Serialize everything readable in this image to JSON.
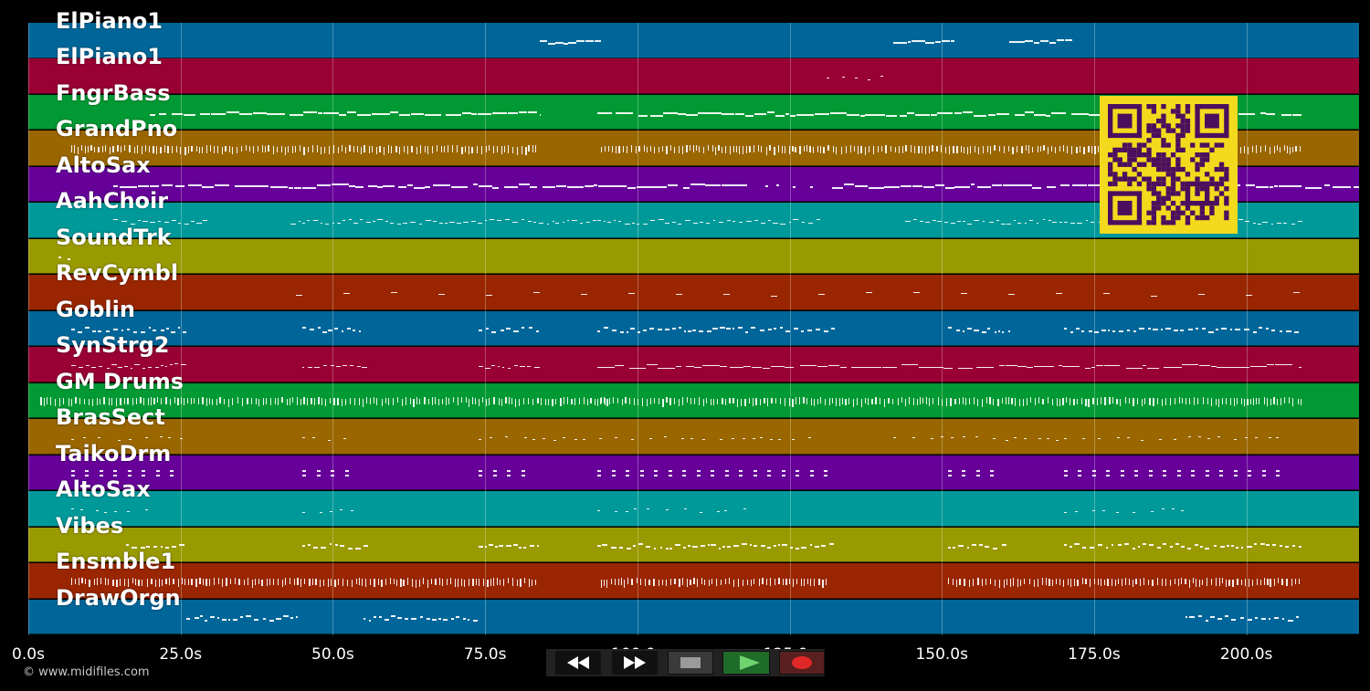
{
  "tracks": [
    {
      "name": "ElPiano1",
      "color": "#006699"
    },
    {
      "name": "ElPiano1",
      "color": "#990033"
    },
    {
      "name": "FngrBass",
      "color": "#009933"
    },
    {
      "name": "GrandPno",
      "color": "#996600"
    },
    {
      "name": "AltoSax",
      "color": "#660099"
    },
    {
      "name": "AahChoir",
      "color": "#009999"
    },
    {
      "name": "SoundTrk",
      "color": "#999900"
    },
    {
      "name": "RevCymbl",
      "color": "#992600"
    },
    {
      "name": "Goblin",
      "color": "#006699"
    },
    {
      "name": "SynStrg2",
      "color": "#990033"
    },
    {
      "name": "GM Drums",
      "color": "#009933"
    },
    {
      "name": "BrasSect",
      "color": "#996600"
    },
    {
      "name": "TaikoDrm",
      "color": "#660099"
    },
    {
      "name": "AltoSax",
      "color": "#009999"
    },
    {
      "name": "Vibes",
      "color": "#999900"
    },
    {
      "name": "Ensmble1",
      "color": "#992600"
    },
    {
      "name": "DrawOrgn",
      "color": "#006699"
    }
  ],
  "time_axis": {
    "max_seconds": 218.5,
    "ticks": [
      {
        "value": 0,
        "label": "0.0s"
      },
      {
        "value": 25,
        "label": "25.0s"
      },
      {
        "value": 50,
        "label": "50.0s"
      },
      {
        "value": 75,
        "label": "75.0s"
      },
      {
        "value": 100,
        "label": "100.0s"
      },
      {
        "value": 125,
        "label": "125.0s"
      },
      {
        "value": 150,
        "label": "150.0s"
      },
      {
        "value": 175,
        "label": "175.0s"
      },
      {
        "value": 200,
        "label": "200.0s"
      }
    ]
  },
  "note_segments": [
    {
      "track": 0,
      "start": 84,
      "end": 94,
      "style": "cluster"
    },
    {
      "track": 0,
      "start": 142,
      "end": 151.5,
      "style": "cluster"
    },
    {
      "track": 0,
      "start": 161,
      "end": 170.5,
      "style": "cluster"
    },
    {
      "track": 1,
      "start": 131,
      "end": 141.5,
      "style": "sparse"
    },
    {
      "track": 2,
      "start": 20,
      "end": 84,
      "style": "line"
    },
    {
      "track": 2,
      "start": 93.5,
      "end": 209,
      "style": "line"
    },
    {
      "track": 3,
      "start": 7,
      "end": 83.5,
      "style": "ticks"
    },
    {
      "track": 3,
      "start": 94,
      "end": 209,
      "style": "ticks"
    },
    {
      "track": 4,
      "start": 14,
      "end": 118,
      "style": "line"
    },
    {
      "track": 4,
      "start": 121,
      "end": 129,
      "style": "sparse"
    },
    {
      "track": 4,
      "start": 132,
      "end": 218.5,
      "style": "line"
    },
    {
      "track": 5,
      "start": 14,
      "end": 29,
      "style": "dashes"
    },
    {
      "track": 5,
      "start": 43,
      "end": 130,
      "style": "dashes"
    },
    {
      "track": 5,
      "start": 144,
      "end": 209,
      "style": "dashes"
    },
    {
      "track": 6,
      "start": 5,
      "end": 7,
      "style": "sparse"
    },
    {
      "track": 7,
      "start": 44,
      "end": 209,
      "style": "sparse"
    },
    {
      "track": 8,
      "start": 7,
      "end": 26,
      "style": "dashes"
    },
    {
      "track": 8,
      "start": 45,
      "end": 55,
      "style": "dashes"
    },
    {
      "track": 8,
      "start": 74,
      "end": 84,
      "style": "dashes"
    },
    {
      "track": 8,
      "start": 93.5,
      "end": 132,
      "style": "dashes"
    },
    {
      "track": 8,
      "start": 151,
      "end": 161,
      "style": "dashes"
    },
    {
      "track": 8,
      "start": 170,
      "end": 209,
      "style": "dashes"
    },
    {
      "track": 9,
      "start": 7,
      "end": 26,
      "style": "dashes"
    },
    {
      "track": 9,
      "start": 45,
      "end": 55,
      "style": "dashes"
    },
    {
      "track": 9,
      "start": 74,
      "end": 84,
      "style": "dashes"
    },
    {
      "track": 9,
      "start": 93.5,
      "end": 209,
      "style": "line"
    },
    {
      "track": 10,
      "start": 2,
      "end": 95,
      "style": "ticks"
    },
    {
      "track": 10,
      "start": 94,
      "end": 209,
      "style": "ticks"
    },
    {
      "track": 11,
      "start": 7,
      "end": 25,
      "style": "sparse"
    },
    {
      "track": 11,
      "start": 45,
      "end": 53,
      "style": "sparse"
    },
    {
      "track": 11,
      "start": 74,
      "end": 130,
      "style": "sparse"
    },
    {
      "track": 11,
      "start": 142,
      "end": 207,
      "style": "sparse"
    },
    {
      "track": 12,
      "start": 7,
      "end": 25,
      "style": "blocks"
    },
    {
      "track": 12,
      "start": 45,
      "end": 54,
      "style": "blocks"
    },
    {
      "track": 12,
      "start": 74,
      "end": 82,
      "style": "blocks"
    },
    {
      "track": 12,
      "start": 93.5,
      "end": 131,
      "style": "blocks"
    },
    {
      "track": 12,
      "start": 151,
      "end": 160,
      "style": "blocks"
    },
    {
      "track": 12,
      "start": 170,
      "end": 207,
      "style": "blocks"
    },
    {
      "track": 13,
      "start": 7,
      "end": 20,
      "style": "sparse"
    },
    {
      "track": 13,
      "start": 45,
      "end": 53,
      "style": "sparse"
    },
    {
      "track": 13,
      "start": 93.5,
      "end": 118,
      "style": "sparse"
    },
    {
      "track": 13,
      "start": 170,
      "end": 190,
      "style": "sparse"
    },
    {
      "track": 14,
      "start": 16,
      "end": 26,
      "style": "dashes"
    },
    {
      "track": 14,
      "start": 45,
      "end": 55,
      "style": "dashes"
    },
    {
      "track": 14,
      "start": 74,
      "end": 84,
      "style": "dashes"
    },
    {
      "track": 14,
      "start": 93.5,
      "end": 132,
      "style": "dashes"
    },
    {
      "track": 14,
      "start": 151,
      "end": 161,
      "style": "dashes"
    },
    {
      "track": 14,
      "start": 170,
      "end": 209,
      "style": "dashes"
    },
    {
      "track": 15,
      "start": 7,
      "end": 83.5,
      "style": "ticks"
    },
    {
      "track": 15,
      "start": 94,
      "end": 131.5,
      "style": "ticks"
    },
    {
      "track": 15,
      "start": 151,
      "end": 209,
      "style": "ticks"
    },
    {
      "track": 16,
      "start": 26,
      "end": 44.5,
      "style": "dashes"
    },
    {
      "track": 16,
      "start": 55,
      "end": 74,
      "style": "dashes"
    },
    {
      "track": 16,
      "start": 190,
      "end": 209,
      "style": "dashes"
    }
  ],
  "copyright": "© www.midifiles.com",
  "qr_code": {
    "color": "#f3da1d",
    "module_color": "#4b0f5e"
  },
  "transport": {
    "buttons": [
      {
        "name": "rewind",
        "icon": "rewind-icon"
      },
      {
        "name": "fast-forward",
        "icon": "fast-forward-icon"
      },
      {
        "name": "stop",
        "icon": "stop-icon"
      },
      {
        "name": "play",
        "icon": "play-icon"
      },
      {
        "name": "record",
        "icon": "record-icon"
      }
    ]
  }
}
